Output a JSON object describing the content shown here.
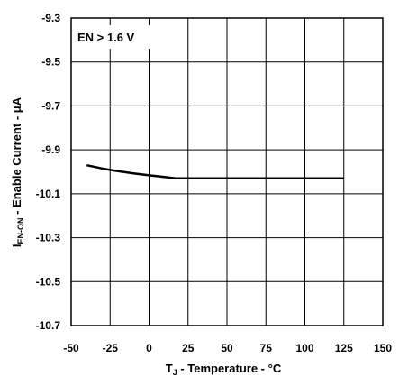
{
  "chart_data": {
    "type": "line",
    "title": "",
    "annotation": "EN > 1.6 V",
    "xlabel": {
      "symbol": "T",
      "sub": "J",
      "rest": " - Temperature - °C"
    },
    "ylabel": {
      "symbol": "I",
      "sub": "EN-ON",
      "rest": " - Enable Current - μA"
    },
    "xlim": [
      -50,
      150
    ],
    "ylim": [
      -10.7,
      -9.3
    ],
    "x_ticks": [
      -50,
      -25,
      0,
      25,
      50,
      75,
      100,
      125,
      150
    ],
    "x_tick_labels": [
      "-50",
      "-25",
      "0",
      "25",
      "50",
      "75",
      "100",
      "125",
      "150"
    ],
    "y_ticks": [
      -9.3,
      -9.5,
      -9.7,
      -9.9,
      -10.1,
      -10.3,
      -10.5,
      -10.7
    ],
    "y_tick_labels": [
      "-9.3",
      "-9.5",
      "-9.7",
      "-9.9",
      "-10.1",
      "-10.3",
      "-10.5",
      "-10.7"
    ],
    "grid": true,
    "series": [
      {
        "color": "#000000",
        "x": [
          -40,
          -30,
          -20,
          -10,
          0,
          10,
          17,
          25,
          50,
          75,
          100,
          125
        ],
        "y": [
          -9.97,
          -9.985,
          -9.997,
          -10.007,
          -10.016,
          -10.024,
          -10.03,
          -10.03,
          -10.03,
          -10.03,
          -10.03,
          -10.03
        ]
      }
    ]
  }
}
